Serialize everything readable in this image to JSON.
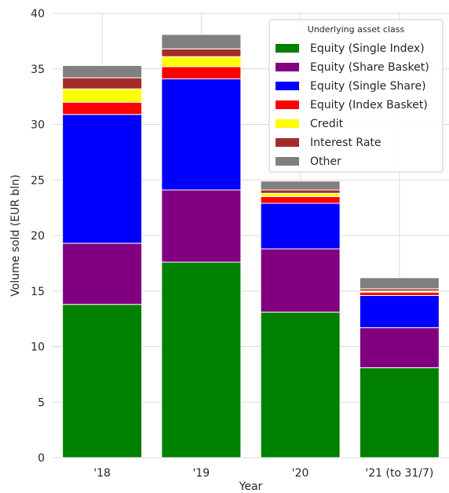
{
  "chart_data": {
    "type": "bar",
    "stacked": true,
    "categories": [
      "'18",
      "'19",
      "'20",
      "'21 (to 31/7)"
    ],
    "xlabel": "Year",
    "ylabel": "Volume sold (EUR bln)",
    "ylim": [
      0,
      40
    ],
    "yticks": [
      0,
      5,
      10,
      15,
      20,
      25,
      30,
      35,
      40
    ],
    "grid": true,
    "legend_title": "Underlying asset class",
    "legend_position": "top-right",
    "series": [
      {
        "name": "Equity (Single Index)",
        "color": "#008000",
        "values": [
          13.8,
          17.6,
          13.1,
          8.1
        ]
      },
      {
        "name": "Equity (Share Basket)",
        "color": "#800080",
        "values": [
          5.5,
          6.5,
          5.7,
          3.6
        ]
      },
      {
        "name": "Equity (Single Share)",
        "color": "#0000ff",
        "values": [
          11.6,
          10.0,
          4.1,
          2.9
        ]
      },
      {
        "name": "Equity (Index Basket)",
        "color": "#ff0000",
        "values": [
          1.1,
          1.1,
          0.6,
          0.3
        ]
      },
      {
        "name": "Credit",
        "color": "#ffff00",
        "values": [
          1.2,
          0.9,
          0.3,
          0.1
        ]
      },
      {
        "name": "Interest Rate",
        "color": "#a52a2a",
        "values": [
          1.0,
          0.7,
          0.3,
          0.2
        ]
      },
      {
        "name": "Other",
        "color": "#808080",
        "values": [
          1.1,
          1.3,
          0.8,
          1.0
        ]
      }
    ]
  }
}
